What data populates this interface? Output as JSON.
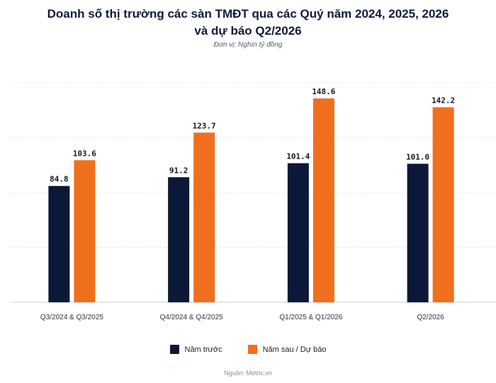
{
  "header": {
    "title": "Doanh số thị trường các sàn TMĐT qua các Quý năm 2024, 2025, 2026 và dự báo Q2/2026",
    "subtitle": "Đơn vị: Nghìn tỷ đồng"
  },
  "footer": {
    "source": "Nguồn: Metric.vn"
  },
  "colors": {
    "previous": "#0c1838",
    "current": "#f06f1d"
  },
  "chart_data": {
    "type": "bar",
    "categories": [
      "Q3/2024 & Q3/2025",
      "Q4/2024 & Q4/2025",
      "Q1/2025 & Q1/2026",
      "Q2/2026"
    ],
    "series": [
      {
        "name": "Năm trước",
        "values": [
          84.8,
          91.2,
          101.4,
          101.0
        ]
      },
      {
        "name": "Năm sau / Dự báo",
        "values": [
          103.6,
          123.7,
          148.6,
          142.2
        ]
      }
    ],
    "ylim": [
      0,
      160
    ],
    "grid": true,
    "legend_position": "bottom"
  }
}
